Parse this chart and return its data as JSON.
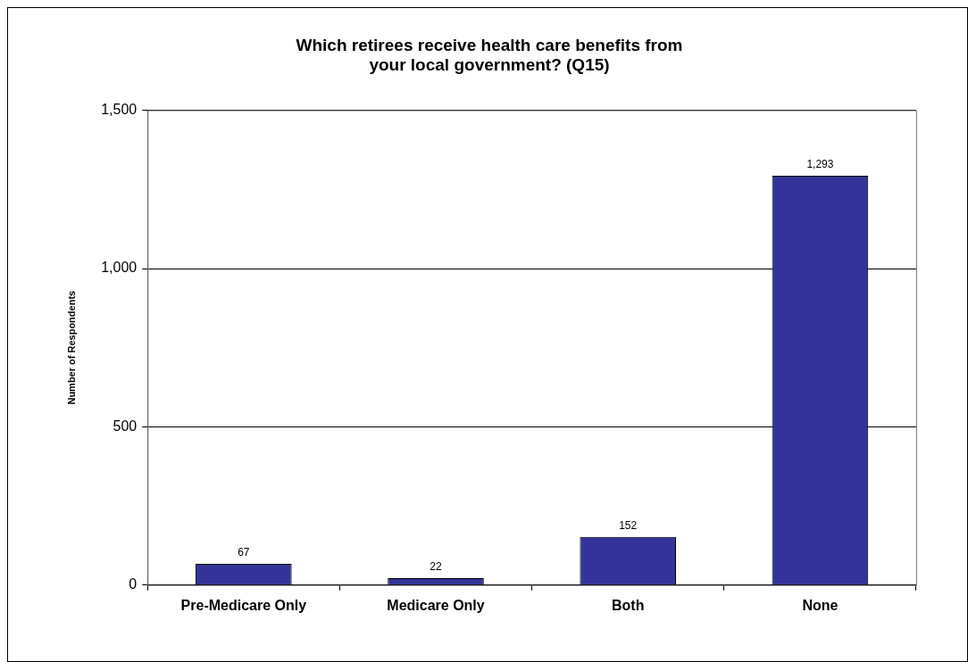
{
  "chart_data": {
    "type": "bar",
    "title": "Which retirees receive health care benefits from your local government? (Q15)",
    "ylabel": "Number of Respondents",
    "categories": [
      "Pre-Medicare Only",
      "Medicare Only",
      "Both",
      "None"
    ],
    "values": [
      67,
      22,
      152,
      1293
    ],
    "color": "#333399",
    "value_labels": [
      "67",
      "22",
      "152",
      "1,293"
    ],
    "ylim": [
      0,
      1500
    ],
    "yticks": [
      0,
      500,
      {
        "value": 1000,
        "label": "1,000"
      },
      {
        "value": 1500,
        "label": "1,500"
      }
    ],
    "grid": "y",
    "legend": false
  }
}
